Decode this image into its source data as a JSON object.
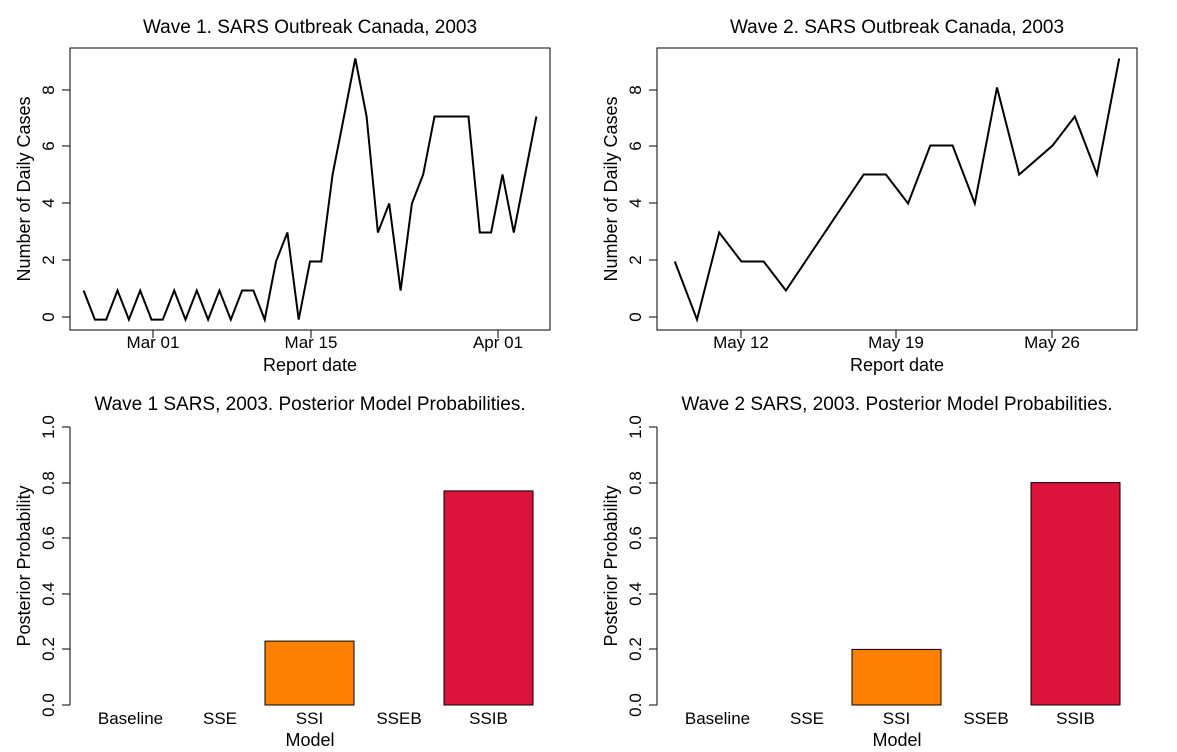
{
  "chart_data": [
    {
      "type": "line",
      "title": "Wave 1. SARS Outbreak Canada, 2003",
      "xlabel": "Report date",
      "ylabel": "Number of Daily Cases",
      "x": [
        1,
        2,
        3,
        4,
        5,
        6,
        7,
        8,
        9,
        10,
        11,
        12,
        13,
        14,
        15,
        16,
        17,
        18,
        19,
        20,
        21,
        22,
        23,
        24,
        25,
        26,
        27,
        28,
        29,
        30,
        31,
        32,
        33,
        34,
        35,
        36,
        37,
        38,
        39,
        40,
        41
      ],
      "values": [
        1,
        0,
        0,
        1,
        0,
        1,
        0,
        0,
        1,
        0,
        1,
        0,
        1,
        0,
        1,
        1,
        0,
        2,
        3,
        0,
        2,
        2,
        5,
        7,
        9,
        7,
        3,
        4,
        1,
        4,
        5,
        7,
        7,
        7,
        7,
        3,
        3,
        5,
        3,
        5,
        7
      ],
      "xlim": [
        -0.2,
        42.2
      ],
      "ylim": [
        -0.36,
        9.36
      ],
      "x_ticks": [
        {
          "x": 7,
          "label": "Mar 01"
        },
        {
          "x": 21,
          "label": "Mar 15"
        },
        {
          "x": 38,
          "label": "Apr 01"
        }
      ],
      "y_ticks": [
        {
          "v": 0,
          "label": "0"
        },
        {
          "v": 2,
          "label": "2"
        },
        {
          "v": 4,
          "label": "4"
        },
        {
          "v": 6,
          "label": "6"
        },
        {
          "v": 8,
          "label": "8"
        }
      ],
      "grid": false
    },
    {
      "type": "line",
      "title": "Wave 2. SARS Outbreak Canada, 2003",
      "xlabel": "Report date",
      "ylabel": "Number of Daily Cases",
      "x": [
        1,
        3,
        5,
        7,
        9,
        11,
        18,
        20,
        22,
        24,
        26,
        28,
        30,
        32,
        35,
        37,
        39,
        41
      ],
      "values": [
        2,
        0,
        3,
        2,
        2,
        1,
        5,
        5,
        4,
        6,
        6,
        4,
        8,
        5,
        6,
        7,
        5,
        9
      ],
      "xlim": [
        -0.6,
        42.6
      ],
      "ylim": [
        -0.36,
        9.36
      ],
      "x_ticks": [
        {
          "x": 7,
          "label": "May 12"
        },
        {
          "x": 21,
          "label": "May 19"
        },
        {
          "x": 35,
          "label": "May 26"
        }
      ],
      "y_ticks": [
        {
          "v": 0,
          "label": "0"
        },
        {
          "v": 2,
          "label": "2"
        },
        {
          "v": 4,
          "label": "4"
        },
        {
          "v": 6,
          "label": "6"
        },
        {
          "v": 8,
          "label": "8"
        }
      ],
      "grid": false
    },
    {
      "type": "bar",
      "title": "Wave 1 SARS, 2003. Posterior Model Probabilities.",
      "xlabel": "Model",
      "ylabel": "Posterior Probability",
      "categories": [
        "Baseline",
        "SSE",
        "SSI",
        "SSEB",
        "SSIB"
      ],
      "values": [
        0,
        0,
        0.23,
        0,
        0.77
      ],
      "colors": [
        "#ffffff",
        "#ffffff",
        "#ff7f00",
        "#ffffff",
        "#dc143c"
      ],
      "ylim": [
        0,
        1
      ],
      "y_ticks": [
        {
          "v": 0,
          "label": "0.0"
        },
        {
          "v": 0.2,
          "label": "0.2"
        },
        {
          "v": 0.4,
          "label": "0.4"
        },
        {
          "v": 0.6,
          "label": "0.6"
        },
        {
          "v": 0.8,
          "label": "0.8"
        },
        {
          "v": 1.0,
          "label": "1.0"
        }
      ]
    },
    {
      "type": "bar",
      "title": "Wave 2 SARS, 2003. Posterior Model Probabilities.",
      "xlabel": "Model",
      "ylabel": "Posterior Probability",
      "categories": [
        "Baseline",
        "SSE",
        "SSI",
        "SSEB",
        "SSIB"
      ],
      "values": [
        0,
        0,
        0.2,
        0,
        0.8
      ],
      "colors": [
        "#ffffff",
        "#ffffff",
        "#ff7f00",
        "#ffffff",
        "#dc143c"
      ],
      "ylim": [
        0,
        1
      ],
      "y_ticks": [
        {
          "v": 0,
          "label": "0.0"
        },
        {
          "v": 0.2,
          "label": "0.2"
        },
        {
          "v": 0.4,
          "label": "0.4"
        },
        {
          "v": 0.6,
          "label": "0.6"
        },
        {
          "v": 0.8,
          "label": "0.8"
        },
        {
          "v": 1.0,
          "label": "1.0"
        }
      ]
    }
  ]
}
